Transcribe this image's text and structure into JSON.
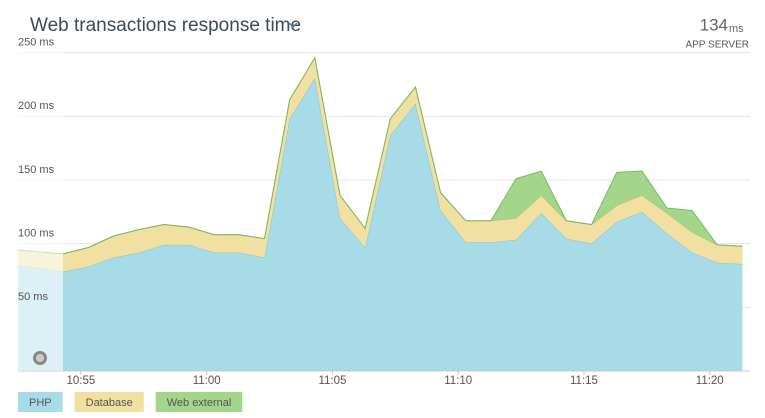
{
  "chart_data": {
    "type": "area",
    "stacked": true,
    "title": "Web transactions response time",
    "summary_value": 134,
    "summary_unit": "ms",
    "summary_label": "APP SERVER",
    "x": [
      652.5,
      654.3,
      655.3,
      656.3,
      657.3,
      658.3,
      659.3,
      660.3,
      661.3,
      662.3,
      663.3,
      664.3,
      665.3,
      666.3,
      667.3,
      668.3,
      669.3,
      670.3,
      671.3,
      672.3,
      673.3,
      674.3,
      675.3,
      676.3,
      677.3,
      678.3,
      679.3,
      680.3,
      681.3
    ],
    "xlim": [
      652.5,
      681.6
    ],
    "xticks": [
      {
        "value": 655,
        "label": "10:55"
      },
      {
        "value": 660,
        "label": "11:00"
      },
      {
        "value": 665,
        "label": "11:05"
      },
      {
        "value": 670,
        "label": "11:10"
      },
      {
        "value": 675,
        "label": "11:15"
      },
      {
        "value": 680,
        "label": "11:20"
      }
    ],
    "ylim": [
      0,
      256
    ],
    "yticks": [
      {
        "value": 50,
        "label": "50 ms"
      },
      {
        "value": 100,
        "label": "100 ms"
      },
      {
        "value": 150,
        "label": "150 ms"
      },
      {
        "value": 200,
        "label": "200 ms"
      },
      {
        "value": 250,
        "label": "250 ms"
      }
    ],
    "grid": true,
    "series": [
      {
        "name": "PHP",
        "color": "#a8dbe8",
        "stroke": "#7fc3d8",
        "values": [
          83,
          78,
          82,
          89,
          93,
          99,
          99,
          93,
          93,
          89,
          198,
          230,
          120,
          97,
          185,
          210,
          126,
          101,
          101,
          103,
          124,
          104,
          100,
          117,
          125,
          108,
          93,
          85,
          84
        ]
      },
      {
        "name": "Database",
        "color": "#f1e0a2",
        "stroke": "#c9b66c",
        "values": [
          12,
          14,
          15,
          17,
          18,
          16,
          14,
          14,
          14,
          15,
          15,
          16,
          18,
          15,
          13,
          13,
          14,
          17,
          17,
          17,
          14,
          14,
          15,
          13,
          13,
          16,
          16,
          14,
          14
        ]
      },
      {
        "name": "Web external",
        "color": "#a3d68b",
        "stroke": "#78bb62",
        "values": [
          0,
          0,
          0,
          0,
          0,
          0,
          0,
          0,
          0,
          0,
          0,
          0,
          0,
          0,
          0,
          0,
          0,
          0,
          0,
          31,
          19,
          0,
          0,
          26,
          19,
          4,
          17,
          0,
          0
        ]
      }
    ]
  }
}
